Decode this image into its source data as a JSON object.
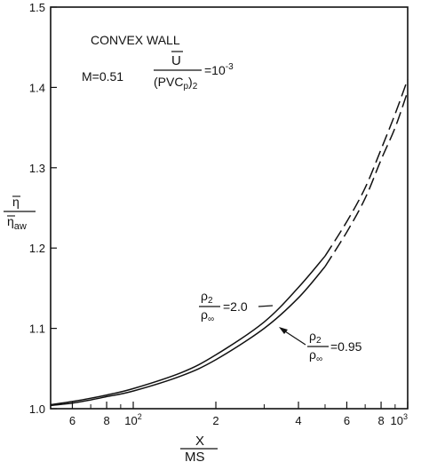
{
  "chart_data": {
    "type": "line",
    "title": "",
    "x_scale": "log",
    "xlim": [
      50,
      1000
    ],
    "ylim": [
      1.0,
      1.5
    ],
    "x_ticks": [
      {
        "value": 60,
        "label": "6"
      },
      {
        "value": 80,
        "label": "8"
      },
      {
        "value": 100,
        "label": "10²"
      },
      {
        "value": 200,
        "label": "2"
      },
      {
        "value": 400,
        "label": "4"
      },
      {
        "value": 600,
        "label": "6"
      },
      {
        "value": 800,
        "label": "8"
      },
      {
        "value": 1000,
        "label": "10³"
      }
    ],
    "x_minor_ticks": [
      70,
      90,
      300,
      500,
      700,
      900
    ],
    "y_ticks": [
      {
        "value": 1.0,
        "label": "1.0"
      },
      {
        "value": 1.1,
        "label": "1.1"
      },
      {
        "value": 1.2,
        "label": "1.2"
      },
      {
        "value": 1.3,
        "label": "1.3"
      },
      {
        "value": 1.4,
        "label": "1.4"
      },
      {
        "value": 1.5,
        "label": "1.5"
      }
    ],
    "xlabel_num": "X",
    "xlabel_den": "MS",
    "ylabel_num": "η",
    "ylabel_den": "η",
    "ylabel_den_sub": "aw",
    "grid": false,
    "legend": "none",
    "annotations": {
      "wall": "CONVEX WALL",
      "mach": "M=0.51",
      "u_num": "U",
      "u_den": "(PVC",
      "u_den_sub": "p",
      "u_den_close": ")",
      "u_den_sub2": "2",
      "u_eq": "=10",
      "u_exp": "-3"
    },
    "series": [
      {
        "curve_label_num": "ρ",
        "curve_label_num_sub": "2",
        "curve_label_den": "ρ",
        "curve_label_den_sub": "∞",
        "curve_label_value": "=2.0",
        "x": [
          50,
          60,
          70,
          80,
          100,
          150,
          200,
          300,
          400,
          500
        ],
        "y": [
          1.005,
          1.009,
          1.013,
          1.017,
          1.025,
          1.045,
          1.067,
          1.108,
          1.151,
          1.19
        ],
        "x_dashed": [
          500,
          600,
          700,
          800,
          900,
          1000
        ],
        "y_dashed": [
          1.19,
          1.233,
          1.275,
          1.323,
          1.367,
          1.41
        ]
      },
      {
        "curve_label_num": "ρ",
        "curve_label_num_sub": "2",
        "curve_label_den": "ρ",
        "curve_label_den_sub": "∞",
        "curve_label_value": "=0.95",
        "x": [
          50,
          60,
          70,
          80,
          100,
          150,
          200,
          300,
          400,
          500
        ],
        "y": [
          1.004,
          1.007,
          1.011,
          1.015,
          1.022,
          1.041,
          1.061,
          1.1,
          1.138,
          1.177
        ],
        "x_dashed": [
          500,
          600,
          700,
          800,
          900,
          1000
        ],
        "y_dashed": [
          1.177,
          1.22,
          1.262,
          1.31,
          1.35,
          1.395
        ]
      }
    ]
  }
}
